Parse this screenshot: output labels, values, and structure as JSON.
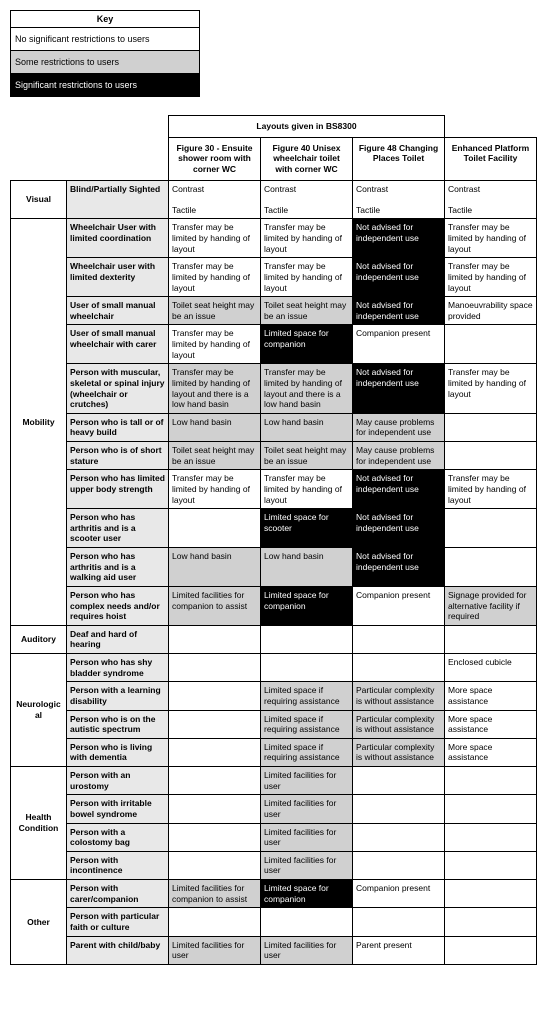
{
  "key": {
    "title": "Key",
    "levels": [
      {
        "label": "No significant restrictions to users",
        "cls": "lvl-none"
      },
      {
        "label": "Some restrictions to users",
        "cls": "lvl-some"
      },
      {
        "label": "Significant restrictions to users",
        "cls": "lvl-sig"
      }
    ]
  },
  "table": {
    "group_header": "Layouts given in BS8300",
    "layouts": [
      "Figure 30 - Ensuite shower room with corner WC",
      "Figure 40 Unisex wheelchair toilet with corner WC",
      "Figure 48 Changing Places Toilet",
      "Enhanced Platform Toilet Facility"
    ],
    "categories": [
      {
        "name": "Visual",
        "rows": [
          {
            "user": "Blind/Partially Sighted",
            "cells": [
              {
                "text": "Contrast\n\nTactile",
                "lvl": "none"
              },
              {
                "text": "Contrast\n\nTactile",
                "lvl": "none"
              },
              {
                "text": "Contrast\n\nTactile",
                "lvl": "none"
              },
              {
                "text": "Contrast\n\nTactile",
                "lvl": "none"
              }
            ]
          }
        ]
      },
      {
        "name": "Mobility",
        "rows": [
          {
            "user": "Wheelchair User with limited coordination",
            "cells": [
              {
                "text": "Transfer may be limited by handing of layout",
                "lvl": "none"
              },
              {
                "text": "Transfer may be limited by handing of layout",
                "lvl": "none"
              },
              {
                "text": "Not advised for independent use",
                "lvl": "sig"
              },
              {
                "text": "Transfer may be limited by handing of layout",
                "lvl": "none"
              }
            ]
          },
          {
            "user": "Wheelchair user with limited dexterity",
            "cells": [
              {
                "text": "Transfer may be limited by handing of layout",
                "lvl": "none"
              },
              {
                "text": "Transfer may be limited by handing of layout",
                "lvl": "none"
              },
              {
                "text": "Not advised for independent use",
                "lvl": "sig"
              },
              {
                "text": "Transfer may be limited by handing of layout",
                "lvl": "none"
              }
            ]
          },
          {
            "user": "User of small manual wheelchair",
            "cells": [
              {
                "text": "Toilet seat height may be an issue",
                "lvl": "some"
              },
              {
                "text": "Toilet seat height may be an issue",
                "lvl": "some"
              },
              {
                "text": "Not advised for independent use",
                "lvl": "sig"
              },
              {
                "text": "Manoeuvrability space provided",
                "lvl": "none"
              }
            ]
          },
          {
            "user": "User of small manual wheelchair with carer",
            "cells": [
              {
                "text": "Transfer may be limited by handing of layout",
                "lvl": "none"
              },
              {
                "text": "Limited space for companion",
                "lvl": "sig"
              },
              {
                "text": "Companion present",
                "lvl": "none"
              },
              {
                "text": "",
                "lvl": "none"
              }
            ]
          },
          {
            "user": "Person with muscular, skeletal or spinal injury (wheelchair or crutches)",
            "cells": [
              {
                "text": "Transfer may be limited by handing of layout and there is a low hand basin",
                "lvl": "some"
              },
              {
                "text": "Transfer may be limited by handing of layout and there is a low hand basin",
                "lvl": "some"
              },
              {
                "text": "Not advised for independent use",
                "lvl": "sig"
              },
              {
                "text": "Transfer may be limited by handing of layout",
                "lvl": "none"
              }
            ]
          },
          {
            "user": "Person who is tall or of heavy build",
            "cells": [
              {
                "text": "Low hand basin",
                "lvl": "some"
              },
              {
                "text": "Low hand basin",
                "lvl": "some"
              },
              {
                "text": "May cause problems for independent use",
                "lvl": "some"
              },
              {
                "text": "",
                "lvl": "none"
              }
            ]
          },
          {
            "user": "Person who is of short stature",
            "cells": [
              {
                "text": "Toilet seat height may be an issue",
                "lvl": "some"
              },
              {
                "text": "Toilet seat height may be an issue",
                "lvl": "some"
              },
              {
                "text": "May cause problems for independent use",
                "lvl": "some"
              },
              {
                "text": "",
                "lvl": "none"
              }
            ]
          },
          {
            "user": "Person who has limited upper body strength",
            "cells": [
              {
                "text": "Transfer may be limited by handing of layout",
                "lvl": "none"
              },
              {
                "text": "Transfer may be limited by handing of layout",
                "lvl": "none"
              },
              {
                "text": "Not advised for independent use",
                "lvl": "sig"
              },
              {
                "text": "Transfer may be limited by handing of layout",
                "lvl": "none"
              }
            ]
          },
          {
            "user": "Person who has arthritis and is a scooter user",
            "cells": [
              {
                "text": "",
                "lvl": "none"
              },
              {
                "text": "Limited space for scooter",
                "lvl": "sig"
              },
              {
                "text": "Not advised for independent use",
                "lvl": "sig"
              },
              {
                "text": "",
                "lvl": "none"
              }
            ]
          },
          {
            "user": "Person who has arthritis and is a walking aid user",
            "cells": [
              {
                "text": "Low hand basin",
                "lvl": "some"
              },
              {
                "text": "Low hand basin",
                "lvl": "some"
              },
              {
                "text": "Not advised for independent use",
                "lvl": "sig"
              },
              {
                "text": "",
                "lvl": "none"
              }
            ]
          },
          {
            "user": "Person who has complex needs and/or requires hoist",
            "cells": [
              {
                "text": "Limited facilities for companion to assist",
                "lvl": "some"
              },
              {
                "text": "Limited space for companion",
                "lvl": "sig"
              },
              {
                "text": "Companion present",
                "lvl": "none"
              },
              {
                "text": "Signage provided for alternative facility if required",
                "lvl": "some"
              }
            ]
          }
        ]
      },
      {
        "name": "Auditory",
        "rows": [
          {
            "user": "Deaf and hard of hearing",
            "cells": [
              {
                "text": "",
                "lvl": "none"
              },
              {
                "text": "",
                "lvl": "none"
              },
              {
                "text": "",
                "lvl": "none"
              },
              {
                "text": "",
                "lvl": "none"
              }
            ]
          }
        ]
      },
      {
        "name": "Neurological",
        "rows": [
          {
            "user": "Person who has shy bladder syndrome",
            "cells": [
              {
                "text": "",
                "lvl": "none"
              },
              {
                "text": "",
                "lvl": "none"
              },
              {
                "text": "",
                "lvl": "none"
              },
              {
                "text": "Enclosed cubicle",
                "lvl": "none"
              }
            ]
          },
          {
            "user": "Person with a learning disability",
            "cells": [
              {
                "text": "",
                "lvl": "none"
              },
              {
                "text": "Limited space if requiring assistance",
                "lvl": "some"
              },
              {
                "text": "Particular complexity is without assistance",
                "lvl": "some"
              },
              {
                "text": "More space assistance",
                "lvl": "none"
              }
            ]
          },
          {
            "user": "Person who is on the autistic spectrum",
            "cells": [
              {
                "text": "",
                "lvl": "none"
              },
              {
                "text": "Limited space if requiring assistance",
                "lvl": "some"
              },
              {
                "text": "Particular complexity is without assistance",
                "lvl": "some"
              },
              {
                "text": "More space assistance",
                "lvl": "none"
              }
            ]
          },
          {
            "user": "Person who is living with dementia",
            "cells": [
              {
                "text": "",
                "lvl": "none"
              },
              {
                "text": "Limited space if requiring assistance",
                "lvl": "some"
              },
              {
                "text": "Particular complexity is without assistance",
                "lvl": "some"
              },
              {
                "text": "More space assistance",
                "lvl": "none"
              }
            ]
          }
        ]
      },
      {
        "name": "Health Condition",
        "rows": [
          {
            "user": "Person with an urostomy",
            "cells": [
              {
                "text": "",
                "lvl": "none"
              },
              {
                "text": "Limited facilities for user",
                "lvl": "some"
              },
              {
                "text": "",
                "lvl": "none"
              },
              {
                "text": "",
                "lvl": "none"
              }
            ]
          },
          {
            "user": "Person with irritable bowel syndrome",
            "cells": [
              {
                "text": "",
                "lvl": "none"
              },
              {
                "text": "Limited facilities for user",
                "lvl": "some"
              },
              {
                "text": "",
                "lvl": "none"
              },
              {
                "text": "",
                "lvl": "none"
              }
            ]
          },
          {
            "user": "Person with a colostomy bag",
            "cells": [
              {
                "text": "",
                "lvl": "none"
              },
              {
                "text": "Limited facilities for user",
                "lvl": "some"
              },
              {
                "text": "",
                "lvl": "none"
              },
              {
                "text": "",
                "lvl": "none"
              }
            ]
          },
          {
            "user": "Person with incontinence",
            "cells": [
              {
                "text": "",
                "lvl": "none"
              },
              {
                "text": "Limited facilities for user",
                "lvl": "some"
              },
              {
                "text": "",
                "lvl": "none"
              },
              {
                "text": "",
                "lvl": "none"
              }
            ]
          }
        ]
      },
      {
        "name": "Other",
        "rows": [
          {
            "user": "Person with carer/companion",
            "cells": [
              {
                "text": "Limited facilities for companion to assist",
                "lvl": "some"
              },
              {
                "text": "Limited space for companion",
                "lvl": "sig"
              },
              {
                "text": "Companion present",
                "lvl": "none"
              },
              {
                "text": "",
                "lvl": "none"
              }
            ]
          },
          {
            "user": "Person with particular faith or culture",
            "cells": [
              {
                "text": "",
                "lvl": "none"
              },
              {
                "text": "",
                "lvl": "none"
              },
              {
                "text": "",
                "lvl": "none"
              },
              {
                "text": "",
                "lvl": "none"
              }
            ]
          },
          {
            "user": "Parent with child/baby",
            "cells": [
              {
                "text": "Limited facilities for user",
                "lvl": "some"
              },
              {
                "text": "Limited facilities for user",
                "lvl": "some"
              },
              {
                "text": "Parent present",
                "lvl": "none"
              },
              {
                "text": "",
                "lvl": "none"
              }
            ]
          }
        ]
      }
    ]
  },
  "colors": {
    "none": "#ffffff",
    "some": "#d0d0d0",
    "sig": "#000000",
    "sig_text": "#ffffff",
    "user_bg": "#e8e8e8",
    "border": "#000000"
  }
}
